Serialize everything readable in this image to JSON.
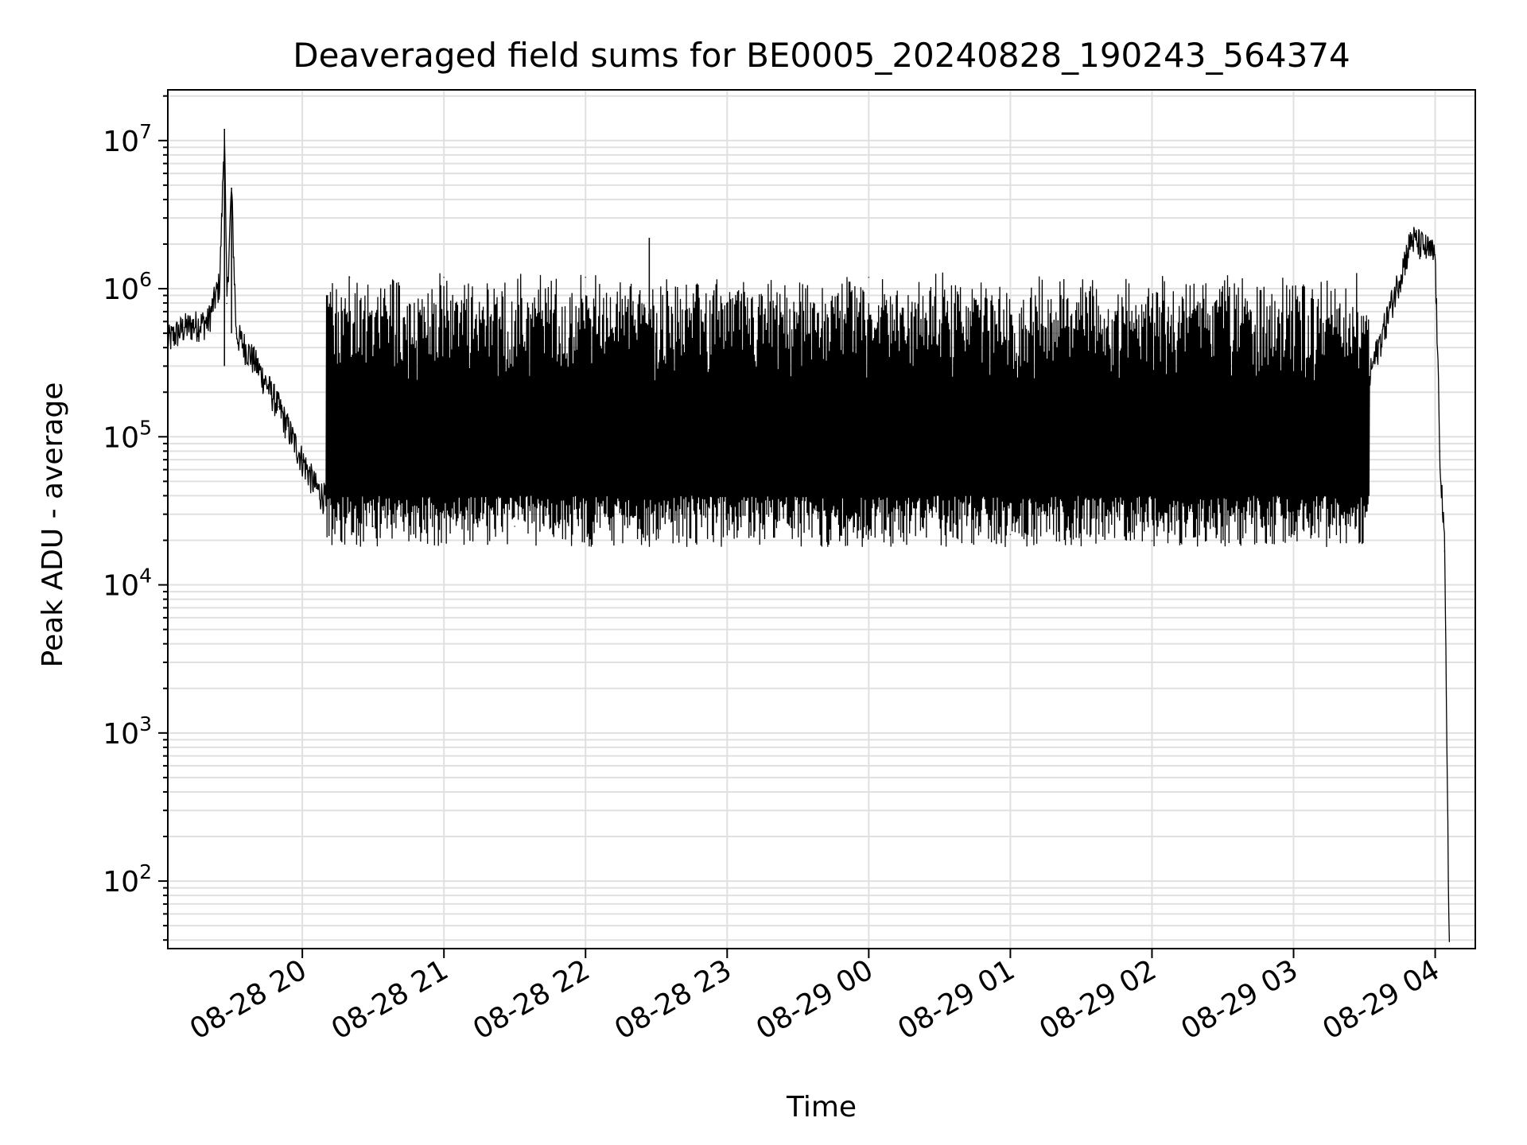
{
  "chart_data": {
    "type": "line",
    "title": "Deaveraged field sums for BE0005_20240828_190243_564374",
    "xlabel": "Time",
    "ylabel": "Peak ADU - average",
    "yscale": "log",
    "ylim": [
      35,
      22000000
    ],
    "xlim": [
      "2024-08-28 19:03",
      "2024-08-29 04:17"
    ],
    "grid": true,
    "xticks": [
      {
        "t": "2024-08-28 20:00",
        "label": "08-28 20"
      },
      {
        "t": "2024-08-28 21:00",
        "label": "08-28 21"
      },
      {
        "t": "2024-08-28 22:00",
        "label": "08-28 22"
      },
      {
        "t": "2024-08-28 23:00",
        "label": "08-28 23"
      },
      {
        "t": "2024-08-29 00:00",
        "label": "08-29 00"
      },
      {
        "t": "2024-08-29 01:00",
        "label": "08-29 01"
      },
      {
        "t": "2024-08-29 02:00",
        "label": "08-29 02"
      },
      {
        "t": "2024-08-29 03:00",
        "label": "08-29 03"
      },
      {
        "t": "2024-08-29 04:00",
        "label": "08-29 04"
      }
    ],
    "yticks": [
      {
        "value": 100,
        "base": "10",
        "exp": "2"
      },
      {
        "value": 1000,
        "base": "10",
        "exp": "3"
      },
      {
        "value": 10000,
        "base": "10",
        "exp": "4"
      },
      {
        "value": 100000,
        "base": "10",
        "exp": "5"
      },
      {
        "value": 1000000,
        "base": "10",
        "exp": "6"
      },
      {
        "value": 10000000,
        "base": "10",
        "exp": "7"
      }
    ],
    "series": [
      {
        "color": "#000000",
        "points": [
          [
            "2024-08-28 19:03",
            450000
          ],
          [
            "2024-08-28 19:10",
            550000
          ],
          [
            "2024-08-28 19:20",
            600000
          ],
          [
            "2024-08-28 19:25",
            1100000
          ],
          [
            "2024-08-28 19:27",
            12000000
          ],
          [
            "2024-08-28 19:28",
            800000
          ],
          [
            "2024-08-28 19:30",
            4800000
          ],
          [
            "2024-08-28 19:32",
            500000
          ],
          [
            "2024-08-28 19:40",
            320000
          ],
          [
            "2024-08-28 19:50",
            160000
          ],
          [
            "2024-08-28 20:00",
            70000
          ],
          [
            "2024-08-28 20:06",
            45000
          ],
          [
            "2024-08-28 20:12",
            35000
          ],
          [
            "2024-08-28 20:20",
            1200000
          ],
          [
            "2024-08-28 20:30",
            25000
          ],
          [
            "2024-08-28 21:00",
            1200000
          ],
          [
            "2024-08-28 21:30",
            25000
          ],
          [
            "2024-08-28 22:00",
            1200000
          ],
          [
            "2024-08-28 22:27",
            2200000
          ],
          [
            "2024-08-28 23:00",
            25000
          ],
          [
            "2024-08-29 00:00",
            1200000
          ],
          [
            "2024-08-29 01:00",
            22000
          ],
          [
            "2024-08-29 02:00",
            20000
          ],
          [
            "2024-08-29 03:00",
            30000
          ],
          [
            "2024-08-29 03:30",
            200000
          ],
          [
            "2024-08-29 03:50",
            2200000
          ],
          [
            "2024-08-29 04:00",
            1700000
          ],
          [
            "2024-08-29 04:02",
            80000
          ],
          [
            "2024-08-29 04:04",
            17000
          ],
          [
            "2024-08-29 04:06",
            35
          ]
        ]
      }
    ]
  }
}
